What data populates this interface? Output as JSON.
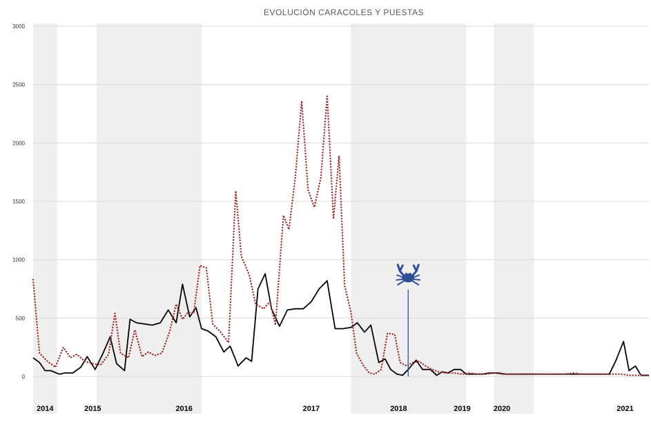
{
  "chart_data": {
    "type": "line",
    "title": "EVOLUCIÓN CARACOLES Y PUESTAS",
    "xlabel": "",
    "ylabel": "",
    "ylim": [
      0,
      3000
    ],
    "yticks": [
      0,
      500,
      1000,
      1500,
      2000,
      2500,
      3000
    ],
    "grid": "horizontal",
    "legend": "none",
    "x_axis_type": "year",
    "x_range": [
      2014.0,
      2021.75
    ],
    "year_labels": [
      {
        "label": "2014",
        "x": 2014.15
      },
      {
        "label": "2015",
        "x": 2014.75
      },
      {
        "label": "2016",
        "x": 2015.9
      },
      {
        "label": "2017",
        "x": 2017.5
      },
      {
        "label": "2018",
        "x": 2018.6
      },
      {
        "label": "2019",
        "x": 2019.4
      },
      {
        "label": "2020",
        "x": 2019.9
      },
      {
        "label": "2021",
        "x": 2021.45
      }
    ],
    "shaded_periods": [
      {
        "start": 2014.0,
        "end": 2014.3
      },
      {
        "start": 2014.8,
        "end": 2016.12
      },
      {
        "start": 2018.0,
        "end": 2019.45
      },
      {
        "start": 2019.8,
        "end": 2020.3
      }
    ],
    "marker": {
      "x": 2018.72,
      "icon": "crab-icon"
    },
    "series": [
      {
        "style": "solid",
        "color": "#000000",
        "points": [
          [
            2014.0,
            160
          ],
          [
            2014.08,
            120
          ],
          [
            2014.15,
            50
          ],
          [
            2014.22,
            50
          ],
          [
            2014.33,
            20
          ],
          [
            2014.4,
            30
          ],
          [
            2014.5,
            30
          ],
          [
            2014.6,
            80
          ],
          [
            2014.68,
            170
          ],
          [
            2014.78,
            60
          ],
          [
            2014.88,
            200
          ],
          [
            2014.97,
            340
          ],
          [
            2015.05,
            110
          ],
          [
            2015.15,
            50
          ],
          [
            2015.22,
            490
          ],
          [
            2015.3,
            460
          ],
          [
            2015.4,
            450
          ],
          [
            2015.5,
            440
          ],
          [
            2015.6,
            460
          ],
          [
            2015.7,
            570
          ],
          [
            2015.8,
            460
          ],
          [
            2015.88,
            790
          ],
          [
            2015.97,
            510
          ],
          [
            2016.05,
            590
          ],
          [
            2016.12,
            410
          ],
          [
            2016.2,
            390
          ],
          [
            2016.3,
            340
          ],
          [
            2016.4,
            210
          ],
          [
            2016.48,
            260
          ],
          [
            2016.58,
            90
          ],
          [
            2016.68,
            160
          ],
          [
            2016.75,
            130
          ],
          [
            2016.83,
            750
          ],
          [
            2016.92,
            880
          ],
          [
            2017.0,
            580
          ],
          [
            2017.1,
            430
          ],
          [
            2017.2,
            570
          ],
          [
            2017.3,
            580
          ],
          [
            2017.4,
            580
          ],
          [
            2017.5,
            640
          ],
          [
            2017.6,
            750
          ],
          [
            2017.7,
            820
          ],
          [
            2017.8,
            410
          ],
          [
            2017.9,
            410
          ],
          [
            2018.0,
            420
          ],
          [
            2018.08,
            460
          ],
          [
            2018.17,
            380
          ],
          [
            2018.25,
            440
          ],
          [
            2018.35,
            120
          ],
          [
            2018.43,
            150
          ],
          [
            2018.5,
            60
          ],
          [
            2018.58,
            20
          ],
          [
            2018.65,
            10
          ],
          [
            2018.72,
            60
          ],
          [
            2018.82,
            140
          ],
          [
            2018.9,
            60
          ],
          [
            2019.0,
            60
          ],
          [
            2019.08,
            10
          ],
          [
            2019.15,
            40
          ],
          [
            2019.22,
            30
          ],
          [
            2019.3,
            60
          ],
          [
            2019.38,
            60
          ],
          [
            2019.45,
            20
          ],
          [
            2019.55,
            20
          ],
          [
            2019.65,
            20
          ],
          [
            2019.75,
            30
          ],
          [
            2019.85,
            30
          ],
          [
            2019.95,
            20
          ],
          [
            2020.05,
            20
          ],
          [
            2020.15,
            20
          ],
          [
            2020.25,
            20
          ],
          [
            2020.35,
            20
          ],
          [
            2020.45,
            20
          ],
          [
            2020.55,
            20
          ],
          [
            2020.65,
            20
          ],
          [
            2020.75,
            20
          ],
          [
            2020.85,
            20
          ],
          [
            2020.95,
            20
          ],
          [
            2021.05,
            20
          ],
          [
            2021.15,
            20
          ],
          [
            2021.25,
            20
          ],
          [
            2021.33,
            130
          ],
          [
            2021.43,
            300
          ],
          [
            2021.5,
            50
          ],
          [
            2021.58,
            90
          ],
          [
            2021.65,
            10
          ],
          [
            2021.75,
            10
          ]
        ]
      },
      {
        "style": "dotted",
        "color": "#a12a2a",
        "points": [
          [
            2014.0,
            830
          ],
          [
            2014.08,
            200
          ],
          [
            2014.18,
            130
          ],
          [
            2014.28,
            80
          ],
          [
            2014.38,
            250
          ],
          [
            2014.47,
            160
          ],
          [
            2014.55,
            190
          ],
          [
            2014.65,
            130
          ],
          [
            2014.75,
            110
          ],
          [
            2014.85,
            100
          ],
          [
            2014.95,
            190
          ],
          [
            2015.03,
            540
          ],
          [
            2015.1,
            200
          ],
          [
            2015.2,
            160
          ],
          [
            2015.28,
            400
          ],
          [
            2015.37,
            170
          ],
          [
            2015.45,
            210
          ],
          [
            2015.53,
            180
          ],
          [
            2015.62,
            200
          ],
          [
            2015.72,
            390
          ],
          [
            2015.8,
            620
          ],
          [
            2015.88,
            490
          ],
          [
            2015.95,
            550
          ],
          [
            2016.02,
            540
          ],
          [
            2016.1,
            950
          ],
          [
            2016.18,
            930
          ],
          [
            2016.26,
            450
          ],
          [
            2016.36,
            380
          ],
          [
            2016.46,
            290
          ],
          [
            2016.55,
            1590
          ],
          [
            2016.62,
            1030
          ],
          [
            2016.72,
            870
          ],
          [
            2016.8,
            620
          ],
          [
            2016.9,
            580
          ],
          [
            2016.98,
            640
          ],
          [
            2017.05,
            440
          ],
          [
            2017.15,
            1380
          ],
          [
            2017.22,
            1260
          ],
          [
            2017.3,
            1710
          ],
          [
            2017.38,
            2360
          ],
          [
            2017.46,
            1600
          ],
          [
            2017.54,
            1450
          ],
          [
            2017.62,
            1700
          ],
          [
            2017.7,
            2400
          ],
          [
            2017.78,
            1350
          ],
          [
            2017.85,
            1890
          ],
          [
            2017.92,
            780
          ],
          [
            2018.0,
            550
          ],
          [
            2018.07,
            200
          ],
          [
            2018.15,
            100
          ],
          [
            2018.23,
            30
          ],
          [
            2018.3,
            20
          ],
          [
            2018.38,
            60
          ],
          [
            2018.46,
            370
          ],
          [
            2018.55,
            360
          ],
          [
            2018.62,
            120
          ],
          [
            2018.7,
            90
          ],
          [
            2018.78,
            120
          ],
          [
            2018.86,
            130
          ],
          [
            2018.94,
            90
          ],
          [
            2019.02,
            60
          ],
          [
            2019.1,
            40
          ],
          [
            2019.2,
            30
          ],
          [
            2019.3,
            30
          ],
          [
            2019.4,
            20
          ],
          [
            2019.5,
            30
          ],
          [
            2019.6,
            20
          ],
          [
            2019.7,
            20
          ],
          [
            2019.8,
            30
          ],
          [
            2019.9,
            20
          ],
          [
            2020.0,
            20
          ],
          [
            2020.1,
            20
          ],
          [
            2020.2,
            20
          ],
          [
            2020.3,
            20
          ],
          [
            2020.4,
            20
          ],
          [
            2020.5,
            20
          ],
          [
            2020.6,
            20
          ],
          [
            2020.7,
            20
          ],
          [
            2020.8,
            30
          ],
          [
            2020.9,
            20
          ],
          [
            2021.0,
            20
          ],
          [
            2021.1,
            20
          ],
          [
            2021.2,
            20
          ],
          [
            2021.3,
            20
          ],
          [
            2021.4,
            20
          ],
          [
            2021.5,
            10
          ],
          [
            2021.6,
            10
          ],
          [
            2021.75,
            10
          ]
        ]
      }
    ]
  }
}
